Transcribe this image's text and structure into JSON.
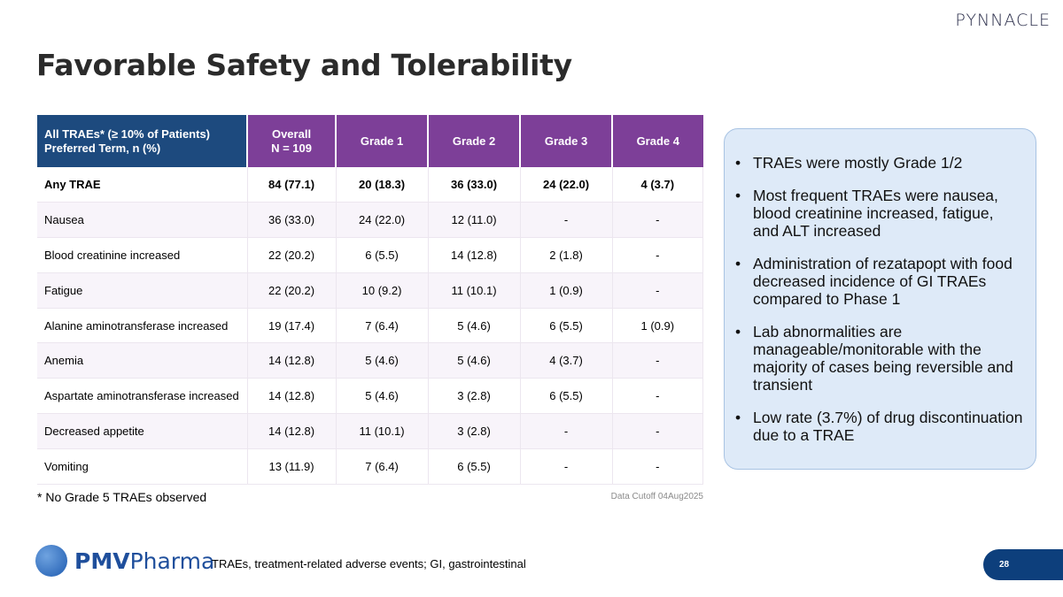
{
  "brand": "PYNNACLE",
  "title": "Favorable Safety and Tolerability",
  "table": {
    "header": {
      "term_line1": "All TRAEs* (≥ 10% of Patients)",
      "term_line2": "Preferred Term, n (%)",
      "overall_line1": "Overall",
      "overall_line2": "N = 109",
      "grades": [
        "Grade 1",
        "Grade 2",
        "Grade 3",
        "Grade 4"
      ]
    },
    "rows": [
      [
        "Any TRAE",
        "84 (77.1)",
        "20 (18.3)",
        "36 (33.0)",
        "24 (22.0)",
        "4 (3.7)"
      ],
      [
        "Nausea",
        "36 (33.0)",
        "24 (22.0)",
        "12 (11.0)",
        "-",
        "-"
      ],
      [
        "Blood creatinine increased",
        "22 (20.2)",
        "6 (5.5)",
        "14 (12.8)",
        "2 (1.8)",
        "-"
      ],
      [
        "Fatigue",
        "22 (20.2)",
        "10 (9.2)",
        "11 (10.1)",
        "1 (0.9)",
        "-"
      ],
      [
        "Alanine aminotransferase increased",
        "19 (17.4)",
        "7 (6.4)",
        "5 (4.6)",
        "6 (5.5)",
        "1 (0.9)"
      ],
      [
        "Anemia",
        "14 (12.8)",
        "5 (4.6)",
        "5 (4.6)",
        "4 (3.7)",
        "-"
      ],
      [
        "Aspartate aminotransferase increased",
        "14 (12.8)",
        "5 (4.6)",
        "3 (2.8)",
        "6 (5.5)",
        "-"
      ],
      [
        "Decreased appetite",
        "14 (12.8)",
        "11 (10.1)",
        "3 (2.8)",
        "-",
        "-"
      ],
      [
        "Vomiting",
        "13 (11.9)",
        "7 (6.4)",
        "6 (5.5)",
        "-",
        "-"
      ]
    ]
  },
  "footnote": "* No Grade 5 TRAEs observed",
  "cutoff": "Data Cutoff 04Aug2025",
  "callout": [
    "TRAEs were mostly Grade 1/2",
    "Most frequent TRAEs were nausea, blood creatinine increased, fatigue, and ALT increased",
    "Administration of rezatapopt with food decreased incidence of GI TRAEs compared to Phase 1",
    "Lab abnormalities are manageable/monitorable with the majority of cases being reversible and transient",
    "Low rate (3.7%) of drug discontinuation due to a TRAE"
  ],
  "logo": {
    "bold": "PMV",
    "light": "Pharma"
  },
  "abbreviations": "TRAEs, treatment-related adverse events; GI, gastrointestinal",
  "page_number": "28",
  "colors": {
    "header_blue": "#1d4a7e",
    "header_purple": "#7d3f98",
    "callout_bg": "#deeaf8",
    "page_tab": "#0d3f7c"
  }
}
